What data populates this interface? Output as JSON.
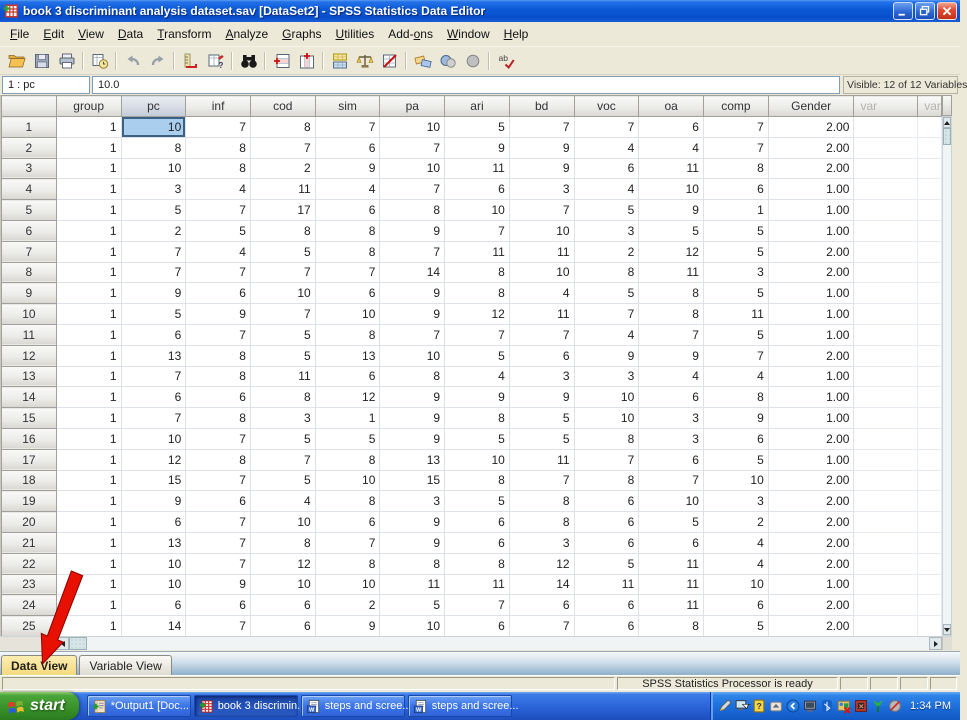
{
  "window": {
    "title": "book 3 discriminant analysis dataset.sav [DataSet2] - SPSS Statistics Data Editor"
  },
  "menu": {
    "items": [
      {
        "label": "File",
        "accel": 0
      },
      {
        "label": "Edit",
        "accel": 0
      },
      {
        "label": "View",
        "accel": 0
      },
      {
        "label": "Data",
        "accel": 0
      },
      {
        "label": "Transform",
        "accel": 0
      },
      {
        "label": "Analyze",
        "accel": 0
      },
      {
        "label": "Graphs",
        "accel": 0
      },
      {
        "label": "Utilities",
        "accel": 0
      },
      {
        "label": "Add-ons",
        "accel": 4
      },
      {
        "label": "Window",
        "accel": 0
      },
      {
        "label": "Help",
        "accel": 0
      }
    ]
  },
  "toolbar": {
    "buttons": [
      "open",
      "save",
      "print",
      "|",
      "dialog-recall",
      "|",
      "undo",
      "redo",
      "|",
      "goto-case",
      "variables",
      "|",
      "find",
      "|",
      "insert-cases",
      "insert-variable",
      "|",
      "split-file",
      "weight-cases",
      "select-cases",
      "|",
      "value-labels",
      "use-variable-sets",
      "show-all-variables",
      "|",
      "spell-check"
    ]
  },
  "cell_reference": {
    "cell": "1 : pc",
    "value": "10.0",
    "visible_info": "Visible: 12 of 12 Variables"
  },
  "grid": {
    "columns": [
      "group",
      "pc",
      "inf",
      "cod",
      "sim",
      "pa",
      "ari",
      "bd",
      "voc",
      "oa",
      "comp",
      "Gender",
      "var",
      "var"
    ],
    "ghost_from": 12,
    "selected": {
      "row": 1,
      "column": "pc"
    },
    "rows": [
      [
        "1",
        "10",
        "7",
        "8",
        "7",
        "10",
        "5",
        "7",
        "7",
        "6",
        "7",
        "2.00"
      ],
      [
        "1",
        "8",
        "8",
        "7",
        "6",
        "7",
        "9",
        "9",
        "4",
        "4",
        "7",
        "2.00"
      ],
      [
        "1",
        "10",
        "8",
        "2",
        "9",
        "10",
        "11",
        "9",
        "6",
        "11",
        "8",
        "2.00"
      ],
      [
        "1",
        "3",
        "4",
        "11",
        "4",
        "7",
        "6",
        "3",
        "4",
        "10",
        "6",
        "1.00"
      ],
      [
        "1",
        "5",
        "7",
        "17",
        "6",
        "8",
        "10",
        "7",
        "5",
        "9",
        "1",
        "1.00"
      ],
      [
        "1",
        "2",
        "5",
        "8",
        "8",
        "9",
        "7",
        "10",
        "3",
        "5",
        "5",
        "1.00"
      ],
      [
        "1",
        "7",
        "4",
        "5",
        "8",
        "7",
        "11",
        "11",
        "2",
        "12",
        "5",
        "2.00"
      ],
      [
        "1",
        "7",
        "7",
        "7",
        "7",
        "14",
        "8",
        "10",
        "8",
        "11",
        "3",
        "2.00"
      ],
      [
        "1",
        "9",
        "6",
        "10",
        "6",
        "9",
        "8",
        "4",
        "5",
        "8",
        "5",
        "1.00"
      ],
      [
        "1",
        "5",
        "9",
        "7",
        "10",
        "9",
        "12",
        "11",
        "7",
        "8",
        "11",
        "1.00"
      ],
      [
        "1",
        "6",
        "7",
        "5",
        "8",
        "7",
        "7",
        "7",
        "4",
        "7",
        "5",
        "1.00"
      ],
      [
        "1",
        "13",
        "8",
        "5",
        "13",
        "10",
        "5",
        "6",
        "9",
        "9",
        "7",
        "2.00"
      ],
      [
        "1",
        "7",
        "8",
        "11",
        "6",
        "8",
        "4",
        "3",
        "3",
        "4",
        "4",
        "1.00"
      ],
      [
        "1",
        "6",
        "6",
        "8",
        "12",
        "9",
        "9",
        "9",
        "10",
        "6",
        "8",
        "1.00"
      ],
      [
        "1",
        "7",
        "8",
        "3",
        "1",
        "9",
        "8",
        "5",
        "10",
        "3",
        "9",
        "1.00"
      ],
      [
        "1",
        "10",
        "7",
        "5",
        "5",
        "9",
        "5",
        "5",
        "8",
        "3",
        "6",
        "2.00"
      ],
      [
        "1",
        "12",
        "8",
        "7",
        "8",
        "13",
        "10",
        "11",
        "7",
        "6",
        "5",
        "1.00"
      ],
      [
        "1",
        "15",
        "7",
        "5",
        "10",
        "15",
        "8",
        "7",
        "8",
        "7",
        "10",
        "2.00"
      ],
      [
        "1",
        "9",
        "6",
        "4",
        "8",
        "3",
        "5",
        "8",
        "6",
        "10",
        "3",
        "2.00"
      ],
      [
        "1",
        "6",
        "7",
        "10",
        "6",
        "9",
        "6",
        "8",
        "6",
        "5",
        "2",
        "2.00"
      ],
      [
        "1",
        "13",
        "7",
        "8",
        "7",
        "9",
        "6",
        "3",
        "6",
        "6",
        "4",
        "2.00"
      ],
      [
        "1",
        "10",
        "7",
        "12",
        "8",
        "8",
        "8",
        "12",
        "5",
        "11",
        "4",
        "2.00"
      ],
      [
        "1",
        "10",
        "9",
        "10",
        "10",
        "11",
        "11",
        "14",
        "11",
        "11",
        "10",
        "1.00"
      ],
      [
        "1",
        "6",
        "6",
        "6",
        "2",
        "5",
        "7",
        "6",
        "6",
        "11",
        "6",
        "2.00"
      ],
      [
        "1",
        "14",
        "7",
        "6",
        "9",
        "10",
        "6",
        "7",
        "6",
        "8",
        "5",
        "2.00"
      ]
    ]
  },
  "tabs": {
    "items": [
      {
        "label": "Data View",
        "active": true
      },
      {
        "label": "Variable View",
        "active": false
      }
    ]
  },
  "status": {
    "text": "SPSS Statistics  Processor is ready"
  },
  "taskbar": {
    "start_label": "start",
    "items": [
      {
        "label": "*Output1 [Doc...",
        "icon": "spss-output",
        "active": false
      },
      {
        "label": "book 3 discrimin...",
        "icon": "spss-data",
        "active": true
      },
      {
        "label": "steps and scree...",
        "icon": "word-doc",
        "active": false
      },
      {
        "label": "steps and scree...",
        "icon": "word-doc",
        "active": false
      }
    ],
    "tray_icons": [
      "pencil",
      "display-pointer",
      "help-book",
      "notify-up",
      "hide-chevron",
      "monitor",
      "bluetooth",
      "graphics-redx",
      "security-red",
      "wireless-green",
      "net-disabled"
    ],
    "clock": "1:34 PM"
  },
  "colors": {
    "selected_cell_bg": "#aacfee",
    "selected_cell_border": "#3d6185",
    "active_tab_bg": "#f4d97e",
    "titlebar_blue": "#0c5ad8",
    "taskbar_blue": "#2a63d8",
    "arrow_red": "#e81000"
  }
}
